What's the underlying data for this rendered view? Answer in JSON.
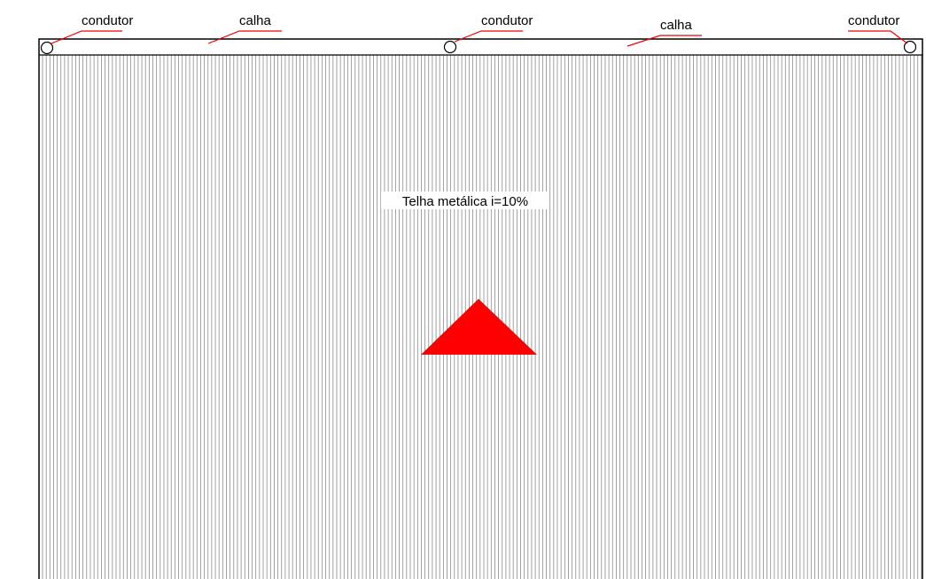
{
  "labels": {
    "condutor_left": "condutor",
    "calha_left": "calha",
    "condutor_middle": "condutor",
    "calha_right": "calha",
    "condutor_right": "condutor"
  },
  "roof": {
    "label": "Telha metálica i=10%"
  }
}
